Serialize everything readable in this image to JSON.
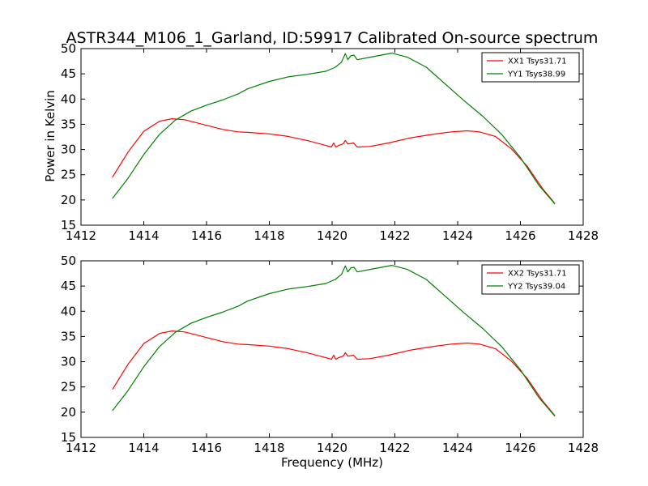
{
  "title": "ASTR344_M106_1_Garland, ID:59917 Calibrated On-source spectrum",
  "xlabel": "Frequency (MHz)",
  "ylabel": "Power in Kelvin",
  "colors": {
    "xx": "#ff0000",
    "yy": "#008000"
  },
  "chart_data": [
    {
      "type": "line",
      "xlim": [
        1412,
        1428
      ],
      "ylim": [
        15,
        50
      ],
      "xticks": [
        "1412",
        "1414",
        "1416",
        "1418",
        "1420",
        "1422",
        "1424",
        "1426",
        "1428"
      ],
      "yticks": [
        "15",
        "20",
        "25",
        "30",
        "35",
        "40",
        "45",
        "50"
      ],
      "legend_position": "top-right",
      "ylabel": "Power in Kelvin",
      "series": [
        {
          "name": "XX1 Tsys31.71",
          "color": "#ff0000",
          "x": [
            1413.0,
            1413.5,
            1414.0,
            1414.5,
            1414.9,
            1415.3,
            1416.0,
            1416.5,
            1417.0,
            1417.3,
            1418.0,
            1418.6,
            1419.2,
            1419.8,
            1419.98,
            1420.05,
            1420.12,
            1420.2,
            1420.35,
            1420.42,
            1420.5,
            1420.6,
            1420.68,
            1420.8,
            1421.2,
            1421.8,
            1422.5,
            1423.2,
            1423.8,
            1424.3,
            1424.7,
            1425.2,
            1425.7,
            1426.2,
            1426.7,
            1427.1
          ],
          "y": [
            24.5,
            29.5,
            33.6,
            35.6,
            36.1,
            35.9,
            34.8,
            34.0,
            33.5,
            33.4,
            33.1,
            32.6,
            31.8,
            30.8,
            30.5,
            31.3,
            30.5,
            30.8,
            31.1,
            31.8,
            31.1,
            31.2,
            31.3,
            30.5,
            30.6,
            31.3,
            32.3,
            33.0,
            33.5,
            33.7,
            33.5,
            32.6,
            30.2,
            26.8,
            22.3,
            19.3
          ]
        },
        {
          "name": "YY1 Tsys38.99",
          "color": "#008000",
          "x": [
            1413.0,
            1413.5,
            1414.0,
            1414.5,
            1415.0,
            1415.5,
            1416.0,
            1416.5,
            1417.0,
            1417.3,
            1418.0,
            1418.6,
            1419.2,
            1419.8,
            1420.1,
            1420.3,
            1420.42,
            1420.5,
            1420.6,
            1420.7,
            1420.8,
            1421.3,
            1421.9,
            1422.4,
            1423.0,
            1423.6,
            1424.2,
            1424.8,
            1425.4,
            1426.0,
            1426.6,
            1427.1
          ],
          "y": [
            20.3,
            24.3,
            29.0,
            33.0,
            35.8,
            37.6,
            38.8,
            39.8,
            41.0,
            42.0,
            43.5,
            44.4,
            44.9,
            45.5,
            46.3,
            47.3,
            49.0,
            47.8,
            48.6,
            48.7,
            47.8,
            48.4,
            49.1,
            48.3,
            46.3,
            43.0,
            39.7,
            36.6,
            33.0,
            28.4,
            22.8,
            19.2
          ]
        }
      ]
    },
    {
      "type": "line",
      "xlim": [
        1412,
        1428
      ],
      "ylim": [
        15,
        50
      ],
      "xticks": [
        "1412",
        "1414",
        "1416",
        "1418",
        "1420",
        "1422",
        "1424",
        "1426",
        "1428"
      ],
      "yticks": [
        "15",
        "20",
        "25",
        "30",
        "35",
        "40",
        "45",
        "50"
      ],
      "legend_position": "top-right",
      "xlabel": "Frequency (MHz)",
      "series": [
        {
          "name": "XX2 Tsys31.71",
          "color": "#ff0000",
          "x": [
            1413.0,
            1413.5,
            1414.0,
            1414.5,
            1414.9,
            1415.3,
            1416.0,
            1416.5,
            1417.0,
            1417.3,
            1418.0,
            1418.6,
            1419.2,
            1419.8,
            1419.98,
            1420.05,
            1420.12,
            1420.2,
            1420.35,
            1420.42,
            1420.5,
            1420.6,
            1420.68,
            1420.8,
            1421.2,
            1421.8,
            1422.5,
            1423.2,
            1423.8,
            1424.3,
            1424.7,
            1425.2,
            1425.7,
            1426.2,
            1426.7,
            1427.1
          ],
          "y": [
            24.5,
            29.5,
            33.6,
            35.6,
            36.1,
            35.9,
            34.8,
            34.0,
            33.5,
            33.4,
            33.1,
            32.6,
            31.8,
            30.8,
            30.5,
            31.3,
            30.5,
            30.8,
            31.1,
            31.8,
            31.1,
            31.2,
            31.3,
            30.5,
            30.6,
            31.3,
            32.3,
            33.0,
            33.5,
            33.7,
            33.5,
            32.6,
            30.2,
            26.8,
            22.3,
            19.3
          ]
        },
        {
          "name": "YY2 Tsys39.04",
          "color": "#008000",
          "x": [
            1413.0,
            1413.5,
            1414.0,
            1414.5,
            1415.0,
            1415.5,
            1416.0,
            1416.5,
            1417.0,
            1417.3,
            1418.0,
            1418.6,
            1419.2,
            1419.8,
            1420.1,
            1420.3,
            1420.42,
            1420.5,
            1420.6,
            1420.7,
            1420.8,
            1421.3,
            1421.9,
            1422.4,
            1423.0,
            1423.6,
            1424.2,
            1424.8,
            1425.4,
            1426.0,
            1426.6,
            1427.1
          ],
          "y": [
            20.3,
            24.3,
            29.0,
            33.0,
            35.8,
            37.6,
            38.8,
            39.8,
            41.0,
            42.0,
            43.5,
            44.4,
            44.9,
            45.5,
            46.3,
            47.3,
            49.0,
            47.8,
            48.6,
            48.7,
            47.8,
            48.4,
            49.1,
            48.3,
            46.3,
            43.0,
            39.7,
            36.6,
            33.0,
            28.4,
            22.8,
            19.2
          ]
        }
      ]
    }
  ]
}
